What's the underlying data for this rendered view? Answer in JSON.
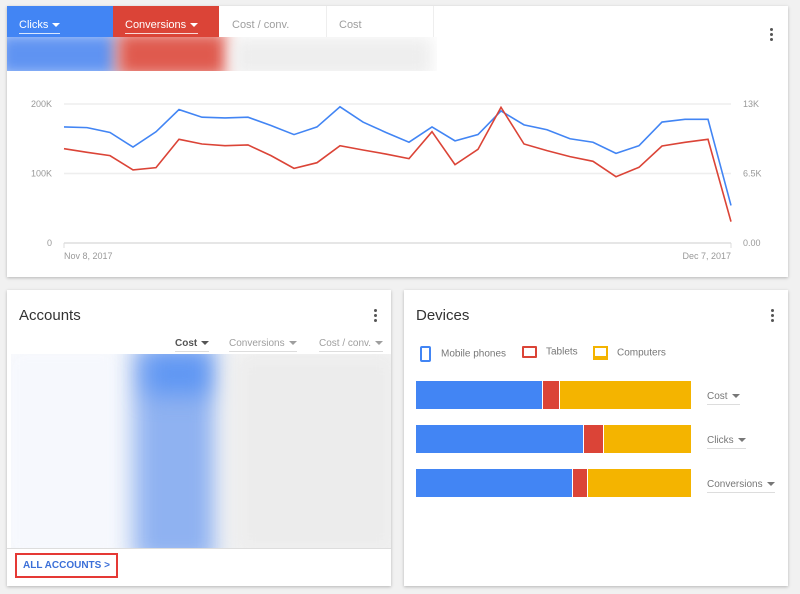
{
  "colors": {
    "blue": "#4285f4",
    "red": "#db4437",
    "yellow": "#f4b400"
  },
  "metric_tabs": [
    {
      "label": "Clicks",
      "selected": true,
      "color": "#4285f4"
    },
    {
      "label": "Conversions",
      "selected": true,
      "color": "#db4437"
    },
    {
      "label": "Cost / conv.",
      "selected": false
    },
    {
      "label": "Cost",
      "selected": false
    }
  ],
  "chart_data": {
    "type": "line",
    "x_start_label": "Nov 8, 2017",
    "x_end_label": "Dec 7, 2017",
    "x": [
      "2017-11-08",
      "2017-11-09",
      "2017-11-10",
      "2017-11-11",
      "2017-11-12",
      "2017-11-13",
      "2017-11-14",
      "2017-11-15",
      "2017-11-16",
      "2017-11-17",
      "2017-11-18",
      "2017-11-19",
      "2017-11-20",
      "2017-11-21",
      "2017-11-22",
      "2017-11-23",
      "2017-11-24",
      "2017-11-25",
      "2017-11-26",
      "2017-11-27",
      "2017-11-28",
      "2017-11-29",
      "2017-11-30",
      "2017-12-01",
      "2017-12-02",
      "2017-12-03",
      "2017-12-04",
      "2017-12-05",
      "2017-12-06",
      "2017-12-07"
    ],
    "left_axis": {
      "ticks": [
        "0",
        "100K",
        "200K"
      ],
      "range": [
        0,
        200000
      ]
    },
    "right_axis": {
      "ticks": [
        "0.00",
        "6.5K",
        "13K"
      ],
      "range": [
        0,
        13000
      ]
    },
    "grid": true,
    "series": [
      {
        "name": "Clicks",
        "axis": "left",
        "color": "#4285f4",
        "values": [
          167000,
          166000,
          159000,
          138000,
          160000,
          192000,
          181000,
          180000,
          181000,
          169000,
          156000,
          167000,
          196000,
          174000,
          159000,
          145000,
          167000,
          147000,
          156000,
          190000,
          170000,
          163000,
          150000,
          145000,
          129000,
          140000,
          174000,
          178000,
          178000,
          54000
        ]
      },
      {
        "name": "Conversions",
        "axis": "right",
        "color": "#db4437",
        "values": [
          8820,
          8480,
          8170,
          6830,
          7050,
          9700,
          9260,
          9100,
          9170,
          8170,
          6980,
          7510,
          9100,
          8700,
          8320,
          7890,
          10410,
          7330,
          8760,
          12690,
          9260,
          8640,
          8080,
          7640,
          6200,
          7080,
          9070,
          9420,
          9700,
          2000
        ]
      }
    ]
  },
  "accounts": {
    "title": "Accounts",
    "columns": [
      {
        "label": "Cost",
        "active": true
      },
      {
        "label": "Conversions",
        "active": false
      },
      {
        "label": "Cost / conv.",
        "active": false
      }
    ],
    "all_accounts_link": "ALL ACCOUNTS"
  },
  "devices": {
    "title": "Devices",
    "legend": [
      {
        "label": "Mobile phones",
        "icon": "phone-icon"
      },
      {
        "label": "Tablets",
        "icon": "tablet-icon"
      },
      {
        "label": "Computers",
        "icon": "computer-icon"
      }
    ],
    "rows": [
      {
        "metric": "Cost",
        "shares": [
          46,
          6,
          48
        ]
      },
      {
        "metric": "Clicks",
        "shares": [
          61,
          7,
          32
        ]
      },
      {
        "metric": "Conversions",
        "shares": [
          57,
          5.5,
          37.5
        ]
      }
    ]
  }
}
